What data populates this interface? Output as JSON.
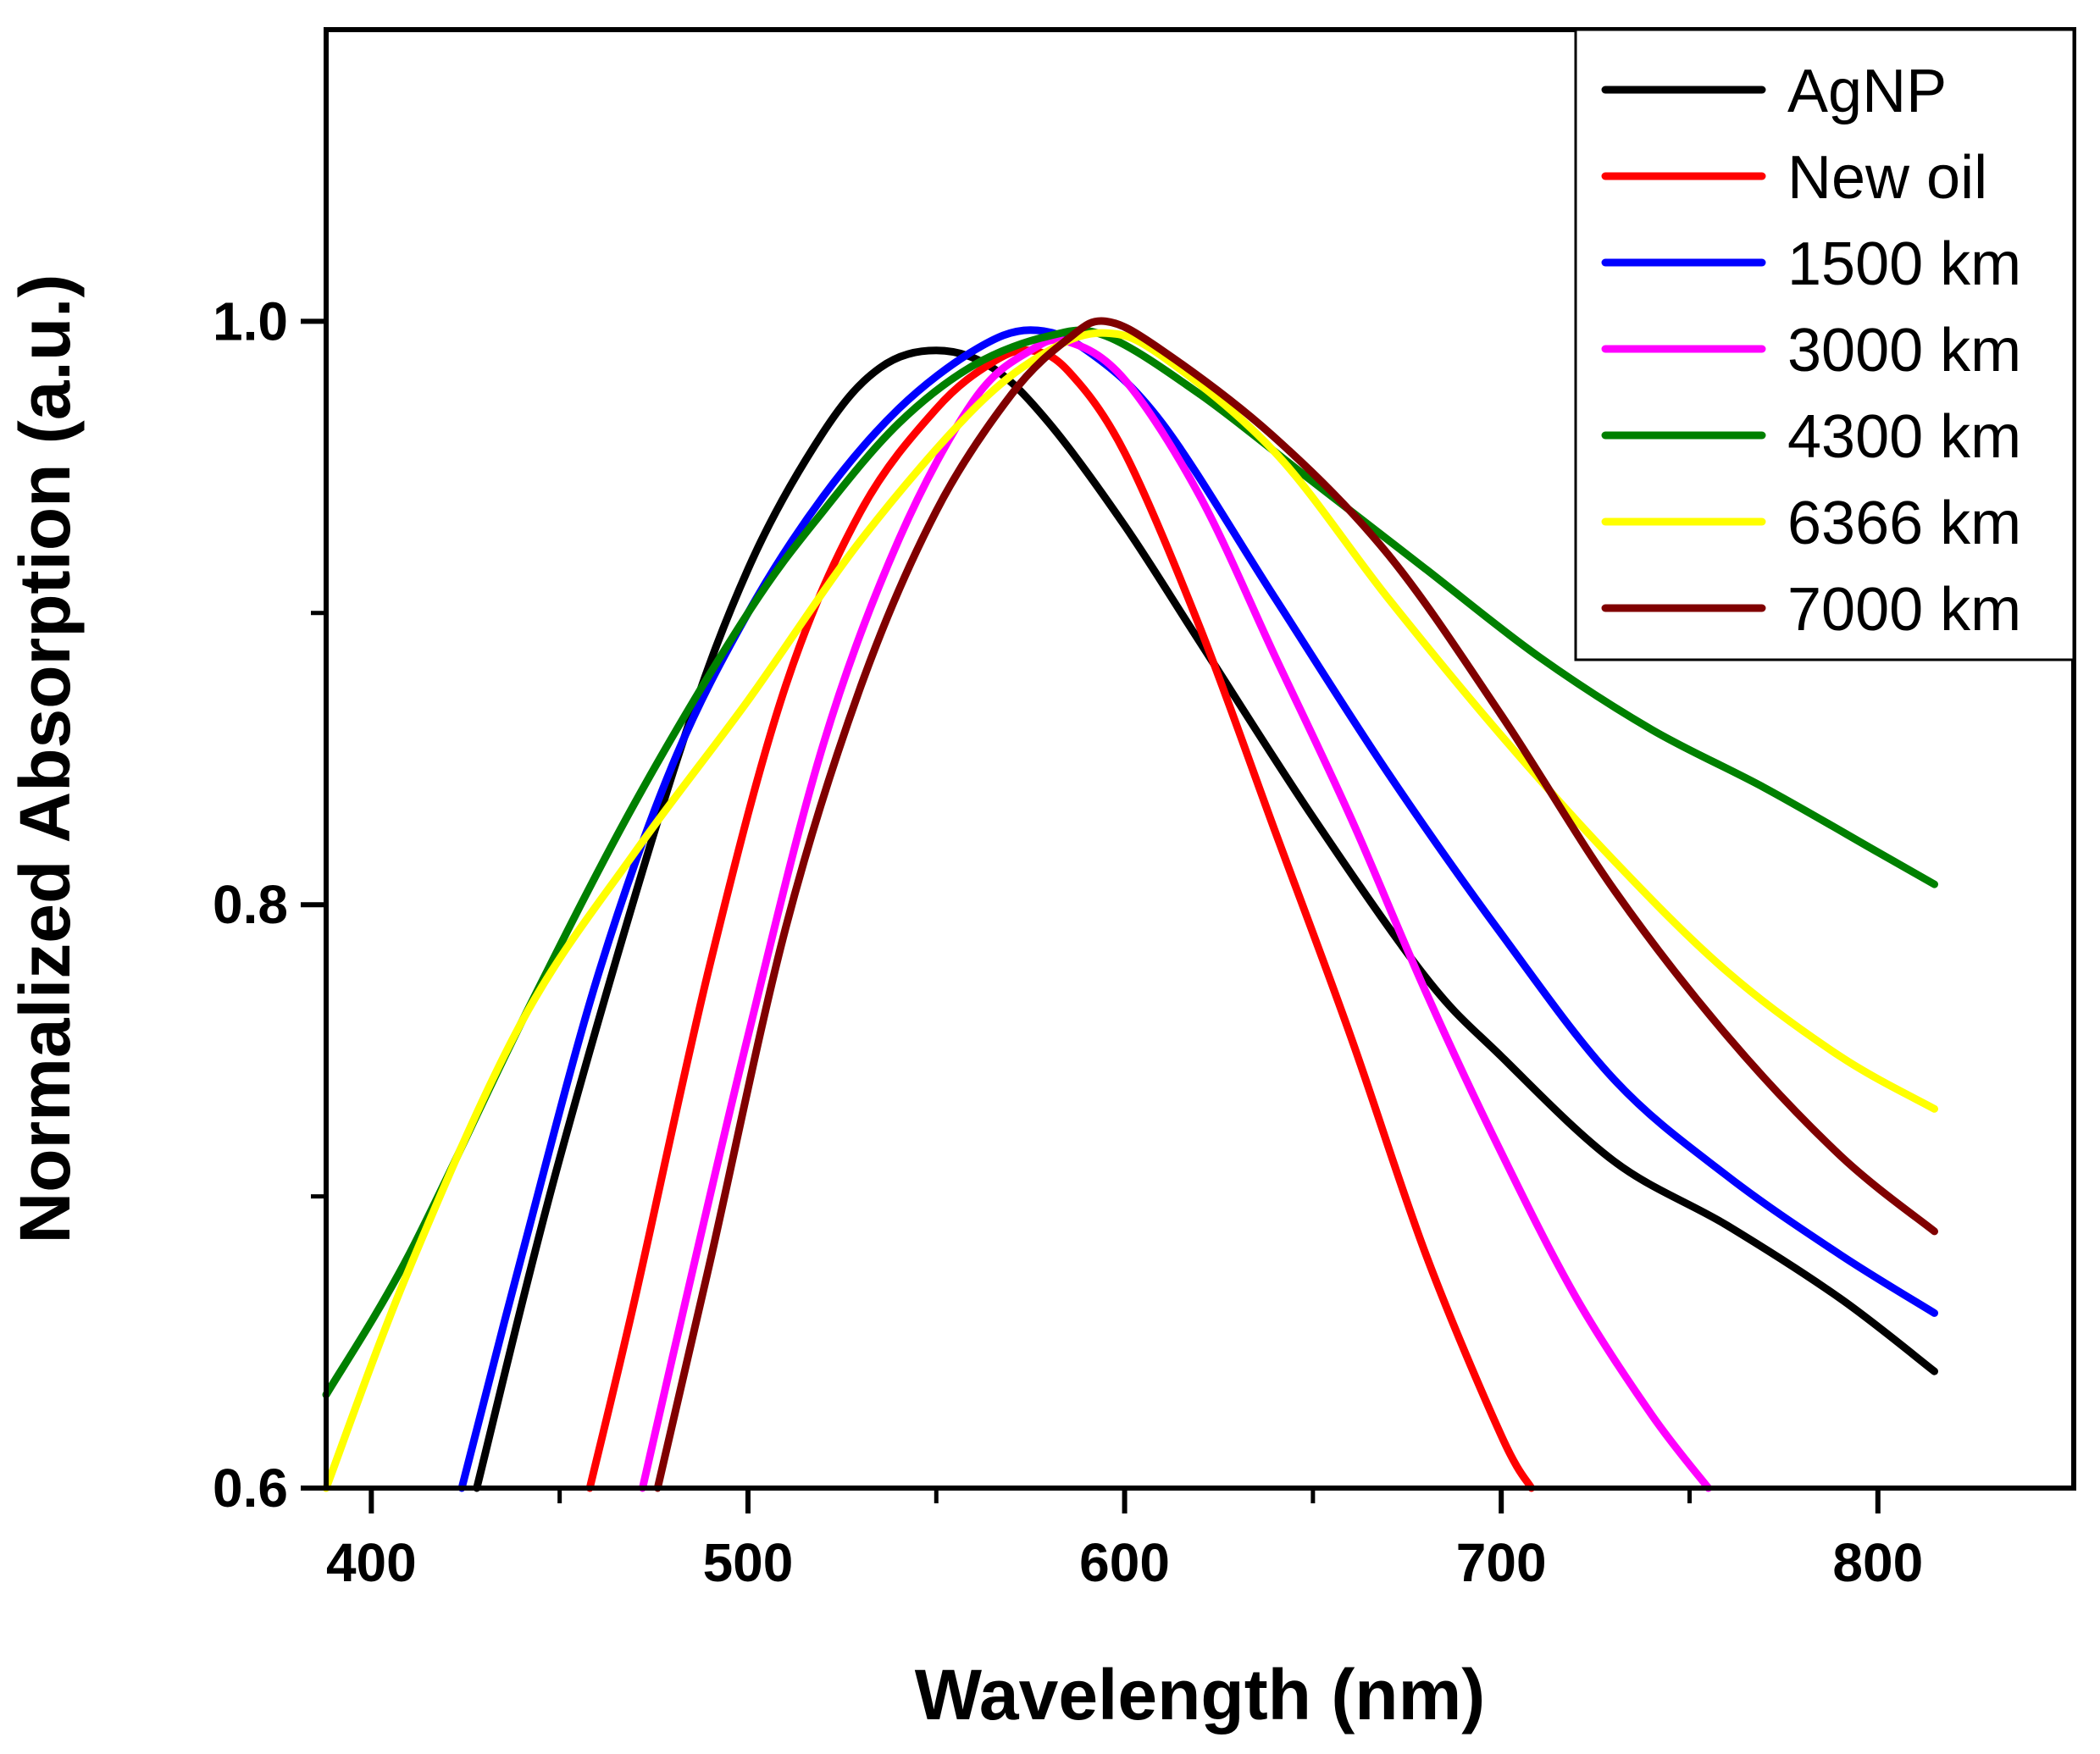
{
  "chart_data": {
    "type": "line",
    "title": "",
    "xlabel": "Wavelength (nm)",
    "ylabel": "Normalized Absorption (a.u.)",
    "xlim": [
      388,
      852
    ],
    "ylim": [
      0.6,
      1.1
    ],
    "x_ticks": [
      400,
      500,
      600,
      700,
      800
    ],
    "x_tick_labels": [
      "400",
      "500",
      "600",
      "700",
      "800"
    ],
    "x_minor_ticks": [
      450,
      550,
      650,
      750
    ],
    "y_ticks": [
      0.6,
      0.8,
      1.0
    ],
    "y_tick_labels": [
      "0.6",
      "0.8",
      "1.0"
    ],
    "y_minor_ticks": [
      0.7,
      0.9
    ],
    "grid": false,
    "legend_position": "top-right",
    "series": [
      {
        "name": "AgNP",
        "color": "#000000",
        "x": [
          428,
          450,
          480,
          500,
          520,
          535,
          550,
          565,
          580,
          600,
          620,
          650,
          680,
          700,
          730,
          760,
          790,
          815
        ],
        "y": [
          0.6,
          0.713,
          0.845,
          0.915,
          0.962,
          0.984,
          0.99,
          0.984,
          0.965,
          0.93,
          0.89,
          0.83,
          0.775,
          0.748,
          0.712,
          0.69,
          0.665,
          0.64
        ]
      },
      {
        "name": "New oil",
        "color": "#ff0000",
        "x": [
          458,
          470,
          490,
          510,
          530,
          550,
          565,
          575,
          585,
          600,
          620,
          640,
          660,
          680,
          700,
          708
        ],
        "y": [
          0.6,
          0.665,
          0.78,
          0.875,
          0.935,
          0.97,
          0.986,
          0.99,
          0.983,
          0.955,
          0.895,
          0.825,
          0.755,
          0.68,
          0.618,
          0.6
        ]
      },
      {
        "name": "1500 km",
        "color": "#0000ff",
        "x": [
          424,
          440,
          460,
          480,
          500,
          520,
          540,
          560,
          575,
          590,
          610,
          640,
          670,
          700,
          730,
          760,
          790,
          815
        ],
        "y": [
          0.6,
          0.68,
          0.775,
          0.848,
          0.9,
          0.94,
          0.97,
          0.99,
          0.997,
          0.99,
          0.965,
          0.905,
          0.845,
          0.79,
          0.74,
          0.707,
          0.68,
          0.66
        ]
      },
      {
        "name": "3000 km",
        "color": "#ff00ff",
        "x": [
          472,
          480,
          500,
          520,
          540,
          560,
          575,
          585,
          600,
          620,
          640,
          660,
          680,
          700,
          720,
          740,
          755
        ],
        "y": [
          0.6,
          0.645,
          0.755,
          0.855,
          0.925,
          0.973,
          0.99,
          0.993,
          0.98,
          0.94,
          0.885,
          0.83,
          0.77,
          0.715,
          0.665,
          0.625,
          0.6
        ]
      },
      {
        "name": "4300 km",
        "color": "#008000",
        "x": [
          388,
          410,
          440,
          470,
          500,
          520,
          540,
          560,
          580,
          595,
          620,
          650,
          680,
          710,
          740,
          770,
          800,
          815
        ],
        "y": [
          0.632,
          0.68,
          0.76,
          0.835,
          0.9,
          0.935,
          0.965,
          0.985,
          0.995,
          0.995,
          0.975,
          0.945,
          0.915,
          0.885,
          0.86,
          0.84,
          0.818,
          0.807
        ]
      },
      {
        "name": "6366 km",
        "color": "#ffff00",
        "x": [
          388,
          410,
          440,
          470,
          500,
          530,
          560,
          580,
          595,
          610,
          640,
          670,
          700,
          730,
          760,
          790,
          815
        ],
        "y": [
          0.6,
          0.675,
          0.76,
          0.818,
          0.87,
          0.925,
          0.97,
          0.99,
          0.996,
          0.988,
          0.955,
          0.905,
          0.858,
          0.815,
          0.777,
          0.748,
          0.73
        ]
      },
      {
        "name": "7000 km",
        "color": "#800000",
        "x": [
          476,
          490,
          510,
          530,
          550,
          570,
          585,
          595,
          610,
          640,
          670,
          700,
          730,
          760,
          790,
          815
        ],
        "y": [
          0.6,
          0.678,
          0.792,
          0.875,
          0.935,
          0.975,
          0.994,
          1.0,
          0.99,
          0.96,
          0.92,
          0.865,
          0.805,
          0.755,
          0.714,
          0.688
        ]
      }
    ]
  }
}
